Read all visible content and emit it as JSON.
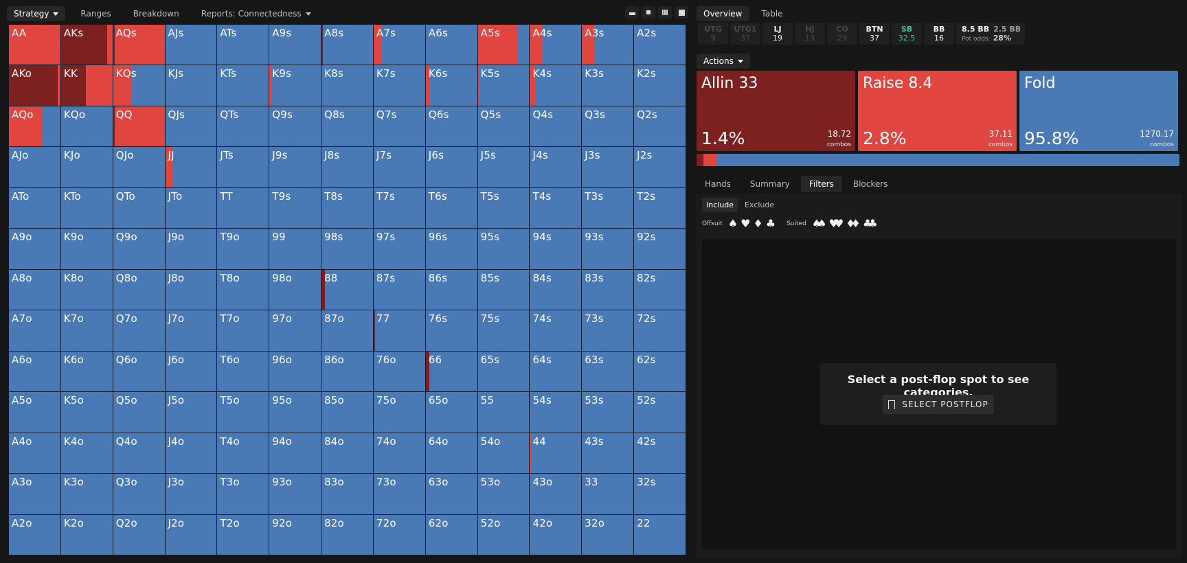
{
  "top_tabs": [
    {
      "label": "Strategy",
      "dropdown": true,
      "active": true
    },
    {
      "label": "Ranges",
      "dropdown": false,
      "active": false
    },
    {
      "label": "Breakdown",
      "dropdown": false,
      "active": false
    },
    {
      "label": "Reports: Connectedness",
      "dropdown": true,
      "active": false
    }
  ],
  "view_buttons": [
    "view-single-icon",
    "view-split-icon",
    "view-grid-icon",
    "view-full-icon"
  ],
  "colors": {
    "allin": "#7d2020",
    "raise": "#e0463f",
    "fold": "#4a7ab5"
  },
  "grid": {
    "rows": [
      [
        "AA",
        "AKs",
        "AQs",
        "AJs",
        "ATs",
        "A9s",
        "A8s",
        "A7s",
        "A6s",
        "A5s",
        "A4s",
        "A3s",
        "A2s"
      ],
      [
        "AKo",
        "KK",
        "KQs",
        "KJs",
        "KTs",
        "K9s",
        "K8s",
        "K7s",
        "K6s",
        "K5s",
        "K4s",
        "K3s",
        "K2s"
      ],
      [
        "AQo",
        "KQo",
        "QQ",
        "QJs",
        "QTs",
        "Q9s",
        "Q8s",
        "Q7s",
        "Q6s",
        "Q5s",
        "Q4s",
        "Q3s",
        "Q2s"
      ],
      [
        "AJo",
        "KJo",
        "QJo",
        "JJ",
        "JTs",
        "J9s",
        "J8s",
        "J7s",
        "J6s",
        "J5s",
        "J4s",
        "J3s",
        "J2s"
      ],
      [
        "ATo",
        "KTo",
        "QTo",
        "JTo",
        "TT",
        "T9s",
        "T8s",
        "T7s",
        "T6s",
        "T5s",
        "T4s",
        "T3s",
        "T2s"
      ],
      [
        "A9o",
        "K9o",
        "Q9o",
        "J9o",
        "T9o",
        "99",
        "98s",
        "97s",
        "96s",
        "95s",
        "94s",
        "93s",
        "92s"
      ],
      [
        "A8o",
        "K8o",
        "Q8o",
        "J8o",
        "T8o",
        "98o",
        "88",
        "87s",
        "86s",
        "85s",
        "84s",
        "83s",
        "82s"
      ],
      [
        "A7o",
        "K7o",
        "Q7o",
        "J7o",
        "T7o",
        "97o",
        "87o",
        "77",
        "76s",
        "75s",
        "74s",
        "73s",
        "72s"
      ],
      [
        "A6o",
        "K6o",
        "Q6o",
        "J6o",
        "T6o",
        "96o",
        "86o",
        "76o",
        "66",
        "65s",
        "64s",
        "63s",
        "62s"
      ],
      [
        "A5o",
        "K5o",
        "Q5o",
        "J5o",
        "T5o",
        "95o",
        "85o",
        "75o",
        "65o",
        "55",
        "54s",
        "53s",
        "52s"
      ],
      [
        "A4o",
        "K4o",
        "Q4o",
        "J4o",
        "T4o",
        "94o",
        "84o",
        "74o",
        "64o",
        "54o",
        "44",
        "43s",
        "42s"
      ],
      [
        "A3o",
        "K3o",
        "Q3o",
        "J3o",
        "T3o",
        "93o",
        "83o",
        "73o",
        "63o",
        "53o",
        "43o",
        "33",
        "32s"
      ],
      [
        "A2o",
        "K2o",
        "Q2o",
        "J2o",
        "T2o",
        "92o",
        "82o",
        "72o",
        "62o",
        "52o",
        "42o",
        "32o",
        "22"
      ]
    ],
    "strategy": {
      "AA": {
        "allin": 0.0,
        "raise": 1.0
      },
      "AKs": {
        "allin": 0.9,
        "raise": 0.1
      },
      "AQs": {
        "allin": 0.03,
        "raise": 0.97
      },
      "A8s": {
        "allin": 0.02,
        "raise": 0.0
      },
      "A7s": {
        "allin": 0.0,
        "raise": 0.15
      },
      "A5s": {
        "allin": 0.0,
        "raise": 0.78
      },
      "A4s": {
        "allin": 0.0,
        "raise": 0.25
      },
      "A3s": {
        "allin": 0.0,
        "raise": 0.25
      },
      "AKo": {
        "allin": 0.95,
        "raise": 0.05
      },
      "KK": {
        "allin": 0.48,
        "raise": 0.52
      },
      "KQs": {
        "allin": 0.0,
        "raise": 0.35
      },
      "K9s": {
        "allin": 0.0,
        "raise": 0.04
      },
      "K6s": {
        "allin": 0.0,
        "raise": 0.07
      },
      "K5s": {
        "allin": 0.0,
        "raise": 0.03
      },
      "K4s": {
        "allin": 0.0,
        "raise": 0.11
      },
      "AQo": {
        "allin": 0.0,
        "raise": 0.65
      },
      "QQ": {
        "allin": 0.03,
        "raise": 0.97
      },
      "JJ": {
        "allin": 0.0,
        "raise": 0.14
      },
      "88": {
        "allin": 0.07,
        "raise": 0.0
      },
      "77": {
        "allin": 0.03,
        "raise": 0.0
      },
      "66": {
        "allin": 0.07,
        "raise": 0.0
      },
      "44": {
        "allin": 0.0,
        "raise": 0.03
      }
    }
  },
  "right_tabs": [
    {
      "label": "Overview",
      "active": true
    },
    {
      "label": "Table",
      "active": false
    }
  ],
  "seats": [
    {
      "pos": "UTG",
      "val": "9",
      "style": "dim"
    },
    {
      "pos": "UTG1",
      "val": "37",
      "style": "dim"
    },
    {
      "pos": "LJ",
      "val": "19",
      "style": "bright"
    },
    {
      "pos": "HJ",
      "val": "13",
      "style": "dim"
    },
    {
      "pos": "CO",
      "val": "29",
      "style": "dim"
    },
    {
      "pos": "BTN",
      "val": "37",
      "style": "bright"
    },
    {
      "pos": "SB",
      "val": "32.5",
      "style": "hl"
    },
    {
      "pos": "BB",
      "val": "16",
      "style": "bright"
    }
  ],
  "pot": {
    "main": "8.5 BB",
    "secondary": "2.5 BB",
    "odds_label": "Pot odds:",
    "odds_value": "28%"
  },
  "actions_label": "Actions",
  "actions": [
    {
      "title": "Allin 33",
      "pct": "1.4%",
      "combos": "18.72",
      "combos_label": "combos",
      "color": "#7d2020",
      "share": 0.014
    },
    {
      "title": "Raise 8.4",
      "pct": "2.8%",
      "combos": "37.11",
      "combos_label": "combos",
      "color": "#e0463f",
      "share": 0.028
    },
    {
      "title": "Fold",
      "pct": "95.8%",
      "combos": "1270.17",
      "combos_label": "combos",
      "color": "#4a7ab5",
      "share": 0.958
    }
  ],
  "bottom_tabs": [
    {
      "label": "Hands",
      "active": false
    },
    {
      "label": "Summary",
      "active": false
    },
    {
      "label": "Filters",
      "active": true
    },
    {
      "label": "Blockers",
      "active": false
    }
  ],
  "filter": {
    "include": "Include",
    "exclude": "Exclude",
    "offsuit_label": "Offsuit",
    "suited_label": "Suited",
    "offsuit_symbols": [
      "♠",
      "♥",
      "♦",
      "♣"
    ],
    "suited_symbols": [
      "♠♠",
      "♥♥",
      "♦♦",
      "♣♣"
    ],
    "message": "Select a post-flop spot to see categories.",
    "button": "SELECT POSTFLOP"
  }
}
